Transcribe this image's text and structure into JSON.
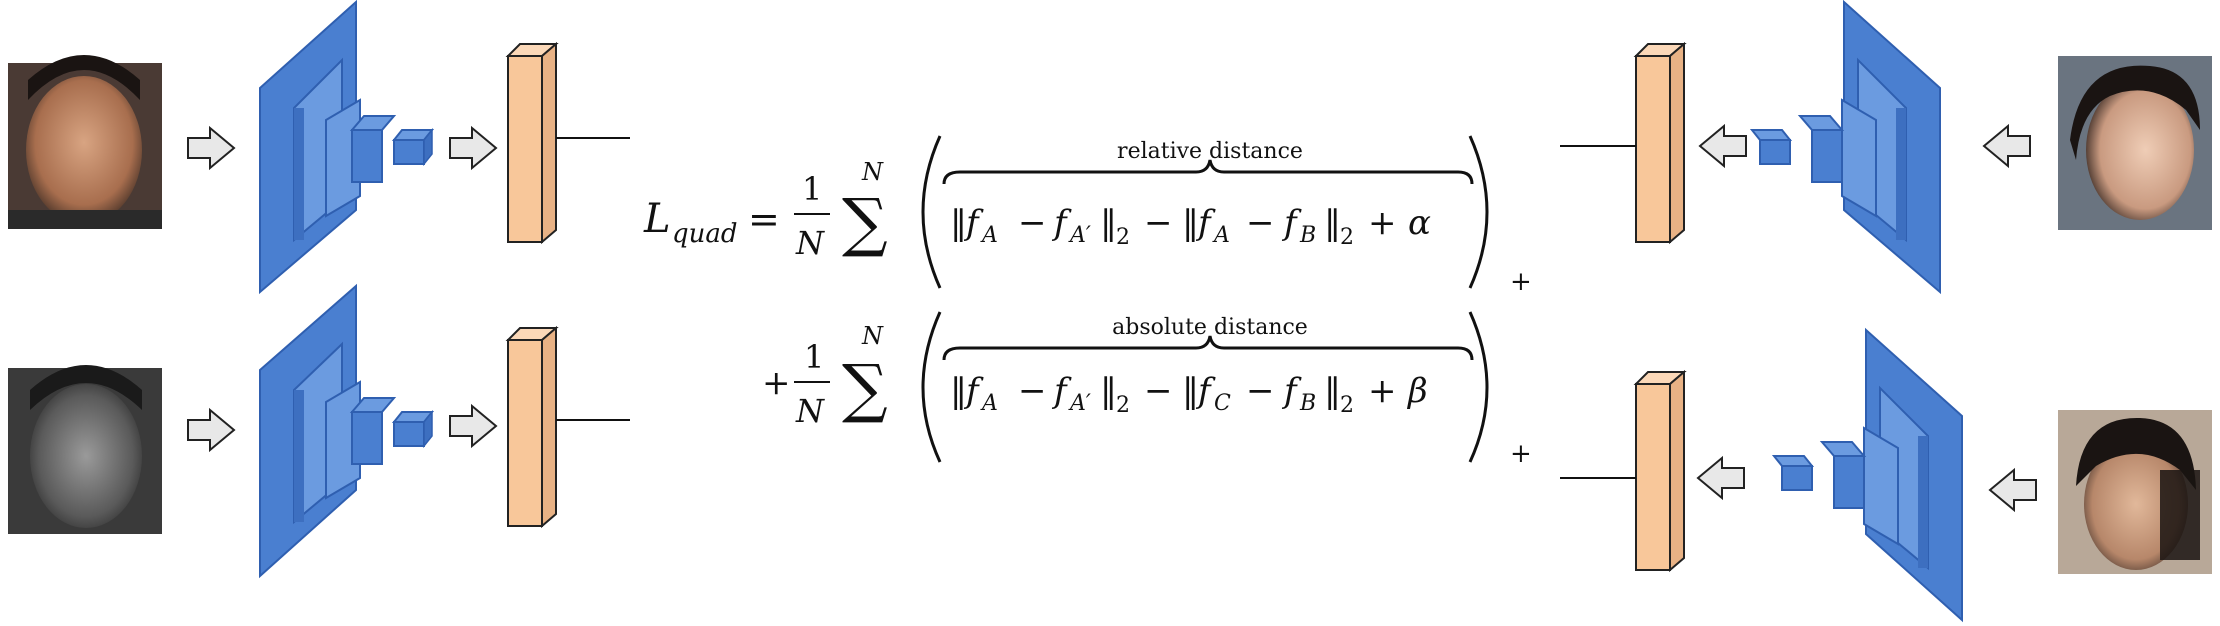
{
  "equation": {
    "lhs": "L",
    "lhs_sub": "quad",
    "eq": "=",
    "frac_num": "1",
    "frac_den": "N",
    "sum_upper": "N",
    "sum_symbol": "∑",
    "plus_sign": "+",
    "positive_part": "+",
    "term1": {
      "brace_label": "relative distance",
      "norm1_a": "f",
      "norm1_a_sub": "A",
      "minus": "−",
      "norm1_b": "f",
      "norm1_b_sub": "A′",
      "norm_sub": "2",
      "norm2_a": "f",
      "norm2_a_sub": "A",
      "norm2_b": "f",
      "norm2_b_sub": "B",
      "margin": "α"
    },
    "term2": {
      "brace_label": "absolute distance",
      "norm1_a": "f",
      "norm1_a_sub": "A",
      "norm1_b": "f",
      "norm1_b_sub": "A′",
      "norm2_a": "f",
      "norm2_a_sub": "C",
      "norm2_b": "f",
      "norm2_b_sub": "B",
      "margin": "β"
    }
  },
  "colors": {
    "cnn_blue": "#4a7fd0",
    "cnn_blue_dark": "#2f5fb0",
    "cnn_blue_light": "#6b9be0",
    "feature_orange": "#f8c79a",
    "arrow_fill": "#e8e8e8"
  },
  "icons": [
    "arrow-right-icon",
    "arrow-left-icon"
  ]
}
